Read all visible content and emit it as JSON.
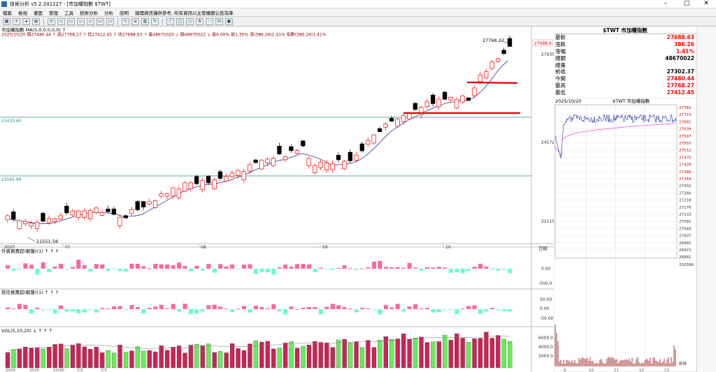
{
  "window": {
    "title": "技術分析 v5.2.241227 - [市加權指數 $TWT]",
    "minimize": "–",
    "maximize": "□",
    "close": "✕"
  },
  "menu": [
    "檔案",
    "檢視",
    "畫面",
    "管理",
    "工具",
    "技術分析",
    "分析",
    "說明",
    "報價資訊僅供參考, 所有資訊以主管機關公告為準"
  ],
  "toolbar_icons": [
    "grid-icon",
    "plus-icon",
    "back-icon",
    "layout-icon",
    "x-icon",
    "window-icon",
    "window-icon",
    "window-icon",
    "window-icon",
    "window-icon",
    "window-icon",
    "cursor-icon",
    "list-icon",
    "bars-icon",
    "draw-icon",
    "pen-icon",
    "rect-icon",
    "circle-icon",
    "text-icon",
    "fib-icon",
    "lock-icon",
    "save-icon"
  ],
  "toolbar_glyphs": [
    "▦",
    "+",
    "◂",
    "▤",
    "✕",
    "▭",
    "▭",
    "▭",
    "▭",
    "▭",
    "▭",
    "↖",
    "≡",
    "▥",
    "✎",
    "⁄",
    "□",
    "○",
    "A",
    "⋯",
    "⊡",
    "▣"
  ],
  "chart": {
    "symbol_label": "市加權指數 MA(5,0,0,0,0,0) ↑",
    "info_line": "2025/10/20 開27480.44 ↑ 高27768.27 ↑ 低27412.45 ↑ 收27688.63 ↑ 量48670020 ↓ 額48670022 ↓ 換0.00% 振1.30% 漲(386.26)1.41% 指數(386.26)1.41%",
    "high_label": "27768.27",
    "low_label": "21551.58",
    "current_tag": "27688.6",
    "hline_upper": "23430.60",
    "hline_lower": "23565.89",
    "price_ticks": [
      "27935",
      "24572",
      "22115"
    ],
    "date_labels": [
      "2025",
      "07",
      "08",
      "09",
      "10"
    ],
    "period_label": "日線",
    "foreign_title": "外資買賣超(解盤)(1) ↑ ↑ ↑",
    "foreign_ticks": [
      "0.00",
      "-500.0"
    ],
    "trust_title": "投信買賣超(解盤)(1) ↑ ↑ ↑",
    "trust_ticks": [
      "50.00",
      "0.00",
      "-50.00"
    ],
    "vol_title": "VOL(5,10,20) ↓ ↑ ↑ ↑",
    "vol_ticks": [
      "6000.0",
      "4000.0",
      "2000.0"
    ],
    "bottom_labels": [
      "2024",
      "2025",
      "10/30",
      "7/1",
      "7/3"
    ],
    "colors": {
      "up": "#ff0000",
      "down": "#000000",
      "ma": "#3030a0",
      "vol_up": "#cc2255",
      "vol_down": "#66ee55",
      "pos_bar": "#ff6699",
      "neg_bar": "#66ffcc",
      "hline": "#2a8a8a",
      "support": "#e00000"
    }
  },
  "chart_data": {
    "type": "candlestick",
    "date_range_labels": [
      "2025",
      "07",
      "08",
      "09",
      "10"
    ],
    "last_candle": {
      "date": "2025/10/20",
      "open": 27480.44,
      "high": 27768.27,
      "low": 27412.45,
      "close": 27688.63
    },
    "annotated_high": 27768.27,
    "annotated_low": 21551.58,
    "horizontal_lines": [
      23430.6,
      23565.89
    ]
  },
  "quote": {
    "title": "$TWT 市加權指數",
    "rows": [
      {
        "label": "最新",
        "value": "27688.63",
        "color": "#ff0000"
      },
      {
        "label": "漲跌",
        "value": "386.26",
        "color": "#ff0000"
      },
      {
        "label": "漲幅",
        "value": "1.41%",
        "color": "#ff0000"
      },
      {
        "label": "總額",
        "value": "48670022",
        "color": "#000000"
      },
      {
        "label": "總量",
        "value": "",
        "color": "#000000"
      },
      {
        "label": "前收",
        "value": "27302.37",
        "color": "#000000"
      },
      {
        "label": "今開",
        "value": "27480.44",
        "color": "#ff0000"
      },
      {
        "label": "最高",
        "value": "27768.27",
        "color": "#ff0000"
      },
      {
        "label": "最低",
        "value": "27412.45",
        "color": "#ff0000"
      }
    ]
  },
  "mini": {
    "date": "2025/10/20",
    "title": "$TWT 市加權指數",
    "price_ticks": [
      "27765",
      "27723",
      "27681",
      "27639",
      "27597",
      "27555",
      "27512",
      "27470",
      "27428",
      "27386",
      "27344",
      "27302",
      "27260",
      "27218",
      "27176",
      "27133",
      "27091",
      "27049",
      "27007",
      "26965",
      "26923",
      "26881"
    ],
    "volume_tick": "202586",
    "volume_label": "即時",
    "time_labels": [
      "9",
      "10",
      "11",
      "12",
      "13"
    ]
  }
}
